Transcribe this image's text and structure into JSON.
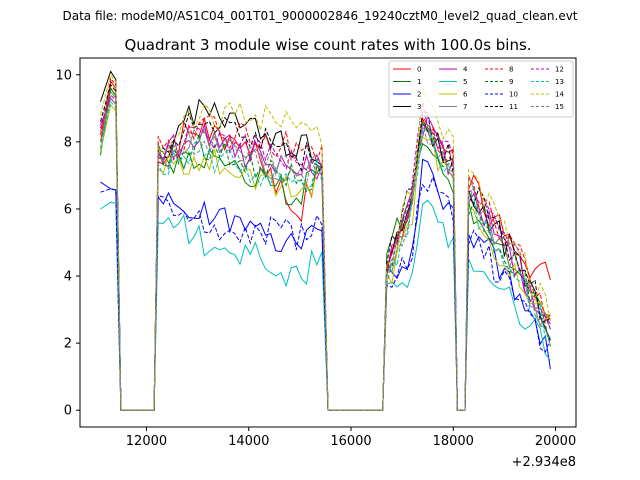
{
  "chart_data": {
    "type": "line",
    "suptitle": "Data file: modeM0/AS1C04_001T01_9000002846_19240cztM0_level2_quad_clean.evt",
    "title": "Quadrant 3 module wise count rates with 100.0s bins.",
    "xlabel": "",
    "ylabel": "",
    "x_offset_label": "+2.934e8",
    "xlim": [
      10700,
      20400
    ],
    "ylim": [
      -0.5,
      10.5
    ],
    "xticks": [
      12000,
      14000,
      16000,
      18000,
      20000
    ],
    "xtick_labels": [
      "12000",
      "14000",
      "16000",
      "18000",
      "20000"
    ],
    "yticks": [
      0,
      2,
      4,
      6,
      8,
      10
    ],
    "ytick_labels": [
      "0",
      "2",
      "4",
      "6",
      "8",
      "10"
    ],
    "legend_position": "top-right",
    "legend_columns": 4,
    "segments": [
      {
        "start": 11100,
        "end": 11400
      },
      {
        "start": 12230,
        "end": 15430
      },
      {
        "start": 16700,
        "end": 18000
      },
      {
        "start": 18300,
        "end": 19970
      }
    ],
    "gap_points": [
      11500,
      12150,
      15550,
      16620,
      18080,
      18230
    ],
    "series": [
      {
        "name": "0",
        "color": "#ff0000",
        "dash": "solid",
        "values": [
          8.0,
          9.8,
          7.7,
          8.5,
          7.8,
          5.9,
          7.4,
          4.2,
          6.0,
          8.9,
          4.5,
          4.0
        ]
      },
      {
        "name": "1",
        "color": "#008000",
        "dash": "solid",
        "values": [
          7.6,
          9.6,
          7.3,
          7.6,
          7.0,
          6.4,
          7.2,
          4.5,
          6.5,
          8.3,
          3.9,
          2.3
        ]
      },
      {
        "name": "2",
        "color": "#0000ff",
        "dash": "solid",
        "values": [
          6.8,
          6.6,
          6.2,
          6.1,
          5.2,
          5.1,
          5.2,
          3.8,
          4.6,
          7.2,
          3.5,
          1.4
        ]
      },
      {
        "name": "3",
        "color": "#000000",
        "dash": "solid",
        "values": [
          9.2,
          10.1,
          7.7,
          9.0,
          8.5,
          7.8,
          7.7,
          4.2,
          6.6,
          8.4,
          4.4,
          2.3
        ]
      },
      {
        "name": "4",
        "color": "#bf00bf",
        "dash": "solid",
        "values": [
          8.5,
          9.3,
          7.6,
          8.2,
          7.6,
          7.3,
          7.3,
          4.3,
          6.4,
          8.6,
          4.2,
          2.0
        ]
      },
      {
        "name": "5",
        "color": "#00bfbf",
        "dash": "solid",
        "values": [
          6.0,
          6.2,
          5.9,
          5.1,
          4.7,
          3.9,
          4.8,
          3.3,
          4.1,
          6.0,
          3.0,
          1.5
        ]
      },
      {
        "name": "6",
        "color": "#bfbf00",
        "dash": "solid",
        "values": [
          7.7,
          9.1,
          7.3,
          7.5,
          7.1,
          6.5,
          7.0,
          3.7,
          5.8,
          8.2,
          3.7,
          2.4
        ]
      },
      {
        "name": "7",
        "color": "#808080",
        "dash": "solid",
        "values": [
          8.3,
          9.5,
          7.5,
          8.2,
          7.5,
          7.0,
          7.5,
          4.1,
          6.3,
          8.7,
          4.1,
          2.2
        ]
      },
      {
        "name": "8",
        "color": "#ff0000",
        "dash": "dashed",
        "values": [
          8.2,
          9.9,
          7.6,
          8.4,
          8.1,
          7.8,
          7.7,
          4.0,
          6.5,
          8.9,
          4.5,
          2.3
        ]
      },
      {
        "name": "9",
        "color": "#008000",
        "dash": "dashed",
        "values": [
          7.8,
          9.6,
          7.4,
          7.8,
          7.3,
          6.9,
          7.1,
          4.2,
          6.1,
          8.3,
          4.0,
          2.1
        ]
      },
      {
        "name": "10",
        "color": "#0000ff",
        "dash": "dashed",
        "values": [
          6.5,
          6.6,
          6.3,
          5.6,
          5.4,
          5.2,
          5.4,
          3.5,
          4.8,
          7.0,
          3.3,
          1.6
        ]
      },
      {
        "name": "11",
        "color": "#000000",
        "dash": "dashed",
        "values": [
          8.6,
          9.7,
          7.8,
          8.7,
          8.2,
          7.6,
          7.5,
          4.3,
          6.9,
          8.7,
          4.4,
          2.3
        ]
      },
      {
        "name": "12",
        "color": "#bf00bf",
        "dash": "dashed",
        "values": [
          8.4,
          9.4,
          7.7,
          8.3,
          7.8,
          7.4,
          7.5,
          4.1,
          6.6,
          8.8,
          4.3,
          2.1
        ]
      },
      {
        "name": "13",
        "color": "#00bfbf",
        "dash": "dashed",
        "values": [
          7.8,
          9.2,
          7.4,
          7.7,
          7.2,
          6.8,
          7.2,
          3.9,
          6.0,
          8.3,
          3.8,
          2.0
        ]
      },
      {
        "name": "14",
        "color": "#bfbf00",
        "dash": "dashed",
        "values": [
          8.8,
          10.0,
          8.0,
          8.9,
          8.7,
          8.5,
          8.2,
          3.9,
          6.8,
          9.2,
          4.6,
          2.6
        ]
      },
      {
        "name": "15",
        "color": "#808080",
        "dash": "dashed",
        "values": [
          8.0,
          9.3,
          7.5,
          8.0,
          7.5,
          7.1,
          7.4,
          4.0,
          6.2,
          8.6,
          4.1,
          2.0
        ]
      }
    ],
    "value_points": [
      11100,
      11300,
      12300,
      13000,
      14000,
      15000,
      15400,
      16700,
      17200,
      17400,
      19300,
      19950
    ]
  }
}
